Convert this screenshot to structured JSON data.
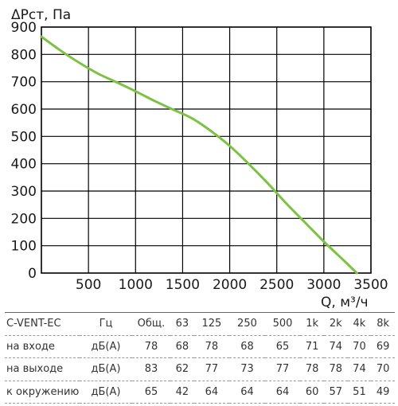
{
  "chart_data": {
    "type": "line",
    "ylabel": "ΔPст, Па",
    "xlabel": "Q, м³/ч",
    "xlim": [
      0,
      3500
    ],
    "ylim": [
      0,
      900
    ],
    "xticks": [
      "500",
      "1000",
      "1500",
      "2000",
      "2500",
      "3000",
      "3500"
    ],
    "yticks": [
      "0",
      "100",
      "200",
      "300",
      "400",
      "500",
      "600",
      "700",
      "800",
      "900"
    ],
    "grid": true,
    "series": [
      {
        "color": "#7dc242",
        "x": [
          0,
          200,
          400,
          600,
          800,
          1000,
          1200,
          1400,
          1600,
          1800,
          2000,
          2200,
          2400,
          2600,
          2800,
          3000,
          3200,
          3350
        ],
        "y": [
          865,
          815,
          770,
          730,
          698,
          665,
          630,
          598,
          566,
          520,
          465,
          400,
          330,
          255,
          185,
          115,
          50,
          0
        ]
      }
    ]
  },
  "table": {
    "model": "C-VENT-EC",
    "hz_label": "Гц",
    "columns": [
      "Общ.",
      "63",
      "125",
      "250",
      "500",
      "1k",
      "2k",
      "4k",
      "8k"
    ],
    "rows": [
      {
        "label": "на входе",
        "unit": "дБ(А)",
        "values": [
          "78",
          "68",
          "78",
          "68",
          "65",
          "71",
          "74",
          "70",
          "69"
        ]
      },
      {
        "label": "на выходе",
        "unit": "дБ(А)",
        "values": [
          "83",
          "62",
          "77",
          "73",
          "77",
          "78",
          "78",
          "74",
          "70"
        ]
      },
      {
        "label": "к окружению",
        "unit": "дБ(А)",
        "values": [
          "65",
          "42",
          "64",
          "64",
          "64",
          "60",
          "57",
          "51",
          "49"
        ]
      }
    ]
  }
}
